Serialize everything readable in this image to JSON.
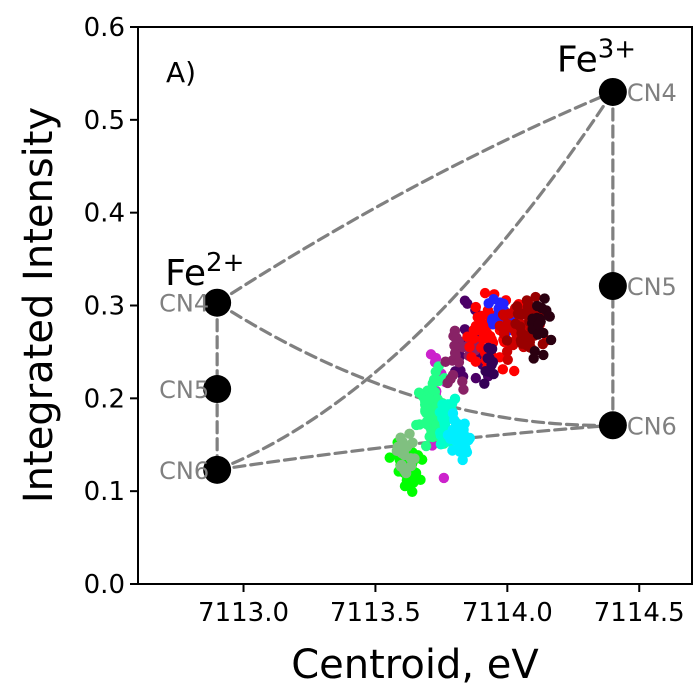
{
  "chart_data": {
    "type": "scatter",
    "panel_label": "A)",
    "xlabel": "Centroid, eV",
    "ylabel": "Integrated Intensity",
    "xlim": [
      7112.6,
      7114.7
    ],
    "ylim": [
      0.0,
      0.6
    ],
    "xticks": [
      7113.0,
      7113.5,
      7114.0,
      7114.5
    ],
    "xtick_labels": [
      "7113.0",
      "7113.5",
      "7114.0",
      "7114.5"
    ],
    "yticks": [
      0.0,
      0.1,
      0.2,
      0.3,
      0.4,
      0.5,
      0.6
    ],
    "ytick_labels": [
      "0.0",
      "0.1",
      "0.2",
      "0.3",
      "0.4",
      "0.5",
      "0.6"
    ],
    "grid": false,
    "ions": [
      {
        "base": "Fe",
        "charge": "2+",
        "x": 7112.9,
        "y": 0.335
      },
      {
        "base": "Fe",
        "charge": "3+",
        "x": 7114.4,
        "y": 0.565
      }
    ],
    "reference_points": [
      {
        "ion": "Fe2+",
        "label": "CN4",
        "x": 7112.9,
        "y": 0.303
      },
      {
        "ion": "Fe2+",
        "label": "CN5",
        "x": 7112.9,
        "y": 0.21
      },
      {
        "ion": "Fe2+",
        "label": "CN6",
        "x": 7112.9,
        "y": 0.123
      },
      {
        "ion": "Fe3+",
        "label": "CN4",
        "x": 7114.4,
        "y": 0.53
      },
      {
        "ion": "Fe3+",
        "label": "CN5",
        "x": 7114.4,
        "y": 0.321
      },
      {
        "ion": "Fe3+",
        "label": "CN6",
        "x": 7114.4,
        "y": 0.171
      }
    ],
    "mixing_lines": [
      {
        "from": [
          7112.9,
          0.303
        ],
        "to": [
          7112.9,
          0.123
        ],
        "curvature": 0
      },
      {
        "from": [
          7114.4,
          0.53
        ],
        "to": [
          7114.4,
          0.171
        ],
        "curvature": 0
      },
      {
        "from": [
          7112.9,
          0.303
        ],
        "to": [
          7114.4,
          0.53
        ],
        "curvature": 0.012
      },
      {
        "from": [
          7112.9,
          0.303
        ],
        "to": [
          7114.4,
          0.171
        ],
        "curvature": -0.035
      },
      {
        "from": [
          7112.9,
          0.123
        ],
        "to": [
          7114.4,
          0.53
        ],
        "curvature": -0.06
      },
      {
        "from": [
          7112.9,
          0.123
        ],
        "to": [
          7114.4,
          0.171
        ],
        "curvature": 0.004
      }
    ],
    "line_color": "#808080",
    "marker_color": "#000000",
    "clusters": [
      {
        "color": "#00ff00",
        "cx": 7113.62,
        "cy": 0.125,
        "sx": 0.025,
        "sy": 0.012,
        "n": 45
      },
      {
        "color": "#80c080",
        "cx": 7113.62,
        "cy": 0.14,
        "sx": 0.02,
        "sy": 0.01,
        "n": 20
      },
      {
        "color": "#cc22cc",
        "cx": 7113.72,
        "cy": 0.19,
        "sx": 0.03,
        "sy": 0.03,
        "n": 20
      },
      {
        "color": "#22ff88",
        "cx": 7113.72,
        "cy": 0.19,
        "sx": 0.025,
        "sy": 0.018,
        "n": 65
      },
      {
        "color": "#00ffcc",
        "cx": 7113.78,
        "cy": 0.17,
        "sx": 0.02,
        "sy": 0.012,
        "n": 30
      },
      {
        "color": "#00eeff",
        "cx": 7113.82,
        "cy": 0.158,
        "sx": 0.018,
        "sy": 0.01,
        "n": 40
      },
      {
        "color": "#4b0066",
        "cx": 7113.86,
        "cy": 0.255,
        "sx": 0.04,
        "sy": 0.022,
        "n": 25
      },
      {
        "color": "#882266",
        "cx": 7113.82,
        "cy": 0.24,
        "sx": 0.03,
        "sy": 0.02,
        "n": 20
      },
      {
        "color": "#ff0000",
        "cx": 7113.92,
        "cy": 0.27,
        "sx": 0.05,
        "sy": 0.02,
        "n": 50
      },
      {
        "color": "#2222ff",
        "cx": 7113.97,
        "cy": 0.287,
        "sx": 0.03,
        "sy": 0.01,
        "n": 25
      },
      {
        "color": "#cc0000",
        "cx": 7114.05,
        "cy": 0.27,
        "sx": 0.04,
        "sy": 0.015,
        "n": 40
      },
      {
        "color": "#990000",
        "cx": 7114.08,
        "cy": 0.28,
        "sx": 0.035,
        "sy": 0.015,
        "n": 40
      },
      {
        "color": "#2a0010",
        "cx": 7114.12,
        "cy": 0.278,
        "sx": 0.02,
        "sy": 0.015,
        "n": 20
      },
      {
        "color": "#330055",
        "cx": 7113.93,
        "cy": 0.24,
        "sx": 0.015,
        "sy": 0.015,
        "n": 10
      }
    ]
  }
}
